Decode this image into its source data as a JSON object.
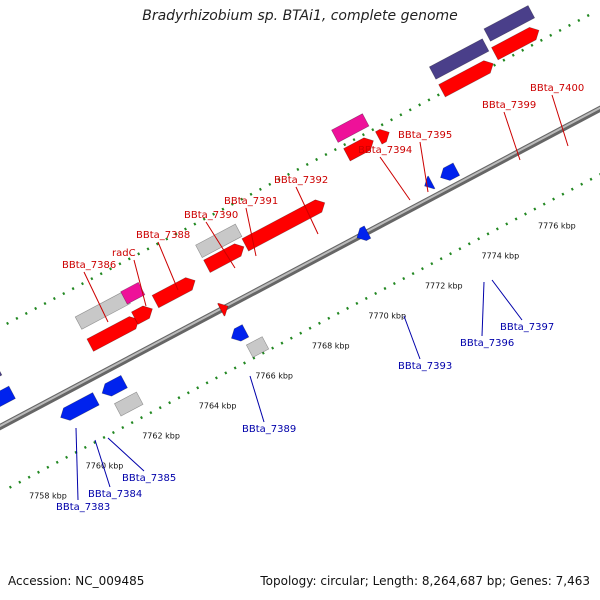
{
  "title": "Bradyrhizobium sp. BTAi1, complete genome",
  "footer": {
    "accession": "Accession: NC_009485",
    "topology": "Topology: circular; Length: 8,264,687 bp; Genes: 7,463"
  },
  "colors": {
    "forward_gene": "#ff0000",
    "reverse_gene": "#0022ee",
    "pseudo": "#c8c8c8",
    "rna": "#ee1199",
    "operon": "#4a3f8a",
    "backbone": "#888888",
    "ticks": "#228822",
    "fwd_label": "#cc0000",
    "rev_label": "#0000aa"
  },
  "ticks": [
    "7758 kbp",
    "7760 kbp",
    "7762 kbp",
    "7764 kbp",
    "7766 kbp",
    "7768 kbp",
    "7770 kbp",
    "7772 kbp",
    "7774 kbp",
    "7776 kbp"
  ],
  "forward_labels": [
    "BBta_7386",
    "radC",
    "BBta_7388",
    "BBta_7390",
    "BBta_7391",
    "BBta_7392",
    "BBta_7394",
    "BBta_7395",
    "BBta_7399",
    "BBta_7400"
  ],
  "reverse_labels": [
    "BBta_7383",
    "BBta_7384",
    "BBta_7385",
    "BBta_7389",
    "BBta_7393",
    "BBta_7396",
    "BBta_7397"
  ]
}
